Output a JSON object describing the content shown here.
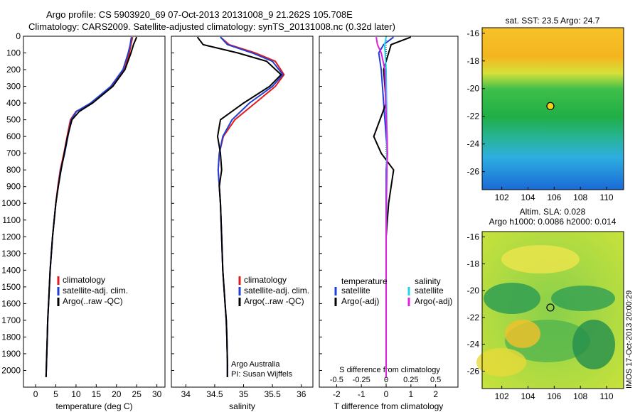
{
  "header": {
    "title_line1": "Argo profile: CS 5903920_69 07-Oct-2013 20131008_9 21.262S 105.708E",
    "title_line2": "Climatology: CARS2009. Satellite-adjusted climatology: synTS_20131008.nc (0.32d later)"
  },
  "colors": {
    "climatology": "#e41a1c",
    "satellite": "#1f3fd6",
    "argo": "#000000",
    "sat_salinity": "#22d4e8",
    "argo_salinity": "#e020e0"
  },
  "chart_data": [
    {
      "type": "line",
      "xlabel": "temperature (deg C)",
      "ylabel": "",
      "xlim": [
        -3,
        32
      ],
      "ylim": [
        2100,
        0
      ],
      "xticks": [
        0,
        5,
        10,
        15,
        20,
        25,
        30
      ],
      "yticks": [
        0,
        100,
        200,
        300,
        400,
        500,
        600,
        700,
        800,
        900,
        1000,
        1100,
        1200,
        1300,
        1400,
        1500,
        1600,
        1700,
        1800,
        1900,
        2000
      ],
      "legend": [
        "climatology",
        "satellite-adj. clim.",
        "Argo(..raw -QC)"
      ],
      "series": [
        {
          "name": "climatology",
          "color": "#e41a1c",
          "x": [
            24.0,
            23.6,
            23.2,
            22.0,
            19.0,
            14.0,
            10.0,
            8.6,
            7.8,
            7.0,
            6.1,
            5.5,
            5.0,
            4.6,
            4.2,
            3.9,
            3.6,
            3.4,
            3.2,
            3.0,
            2.9,
            2.7,
            2.6
          ],
          "y": [
            5,
            50,
            100,
            200,
            300,
            400,
            450,
            500,
            600,
            700,
            800,
            900,
            1000,
            1100,
            1200,
            1300,
            1400,
            1500,
            1600,
            1700,
            1800,
            1950,
            2040
          ]
        },
        {
          "name": "satellite-adj. clim.",
          "color": "#1f3fd6",
          "x": [
            23.7,
            23.4,
            22.9,
            21.6,
            18.6,
            13.6,
            10.1,
            8.8,
            8.0,
            7.2,
            6.2,
            5.6,
            5.0,
            4.6,
            4.2,
            3.9,
            3.6,
            3.4,
            3.2,
            3.0,
            2.9,
            2.7,
            2.6
          ],
          "y": [
            5,
            50,
            100,
            200,
            300,
            400,
            450,
            500,
            600,
            700,
            800,
            900,
            1000,
            1100,
            1200,
            1300,
            1400,
            1500,
            1600,
            1700,
            1800,
            1950,
            2040
          ]
        },
        {
          "name": "Argo(..raw -QC)",
          "color": "#000000",
          "x": [
            25.0,
            24.2,
            23.6,
            22.1,
            19.1,
            14.1,
            10.8,
            9.0,
            7.9,
            7.1,
            6.3,
            5.6,
            5.0,
            4.6,
            4.2,
            3.9,
            3.6,
            3.4,
            3.2,
            3.0,
            2.9,
            2.7,
            2.6
          ],
          "y": [
            5,
            50,
            100,
            200,
            300,
            400,
            450,
            500,
            600,
            700,
            800,
            900,
            1000,
            1100,
            1200,
            1300,
            1400,
            1500,
            1600,
            1700,
            1800,
            1950,
            2040
          ]
        }
      ],
      "annotations": []
    },
    {
      "type": "line",
      "xlabel": "salinity",
      "xlim": [
        33.75,
        36.2
      ],
      "ylim": [
        2100,
        0
      ],
      "xticks": [
        34,
        34.5,
        35,
        35.5,
        36
      ],
      "legend": [
        "climatology",
        "satellite-adj. clim.",
        "Argo(..raw -QC)"
      ],
      "series": [
        {
          "name": "climatology",
          "color": "#e41a1c",
          "x": [
            34.6,
            34.75,
            35.2,
            35.55,
            35.7,
            35.55,
            35.2,
            34.85,
            34.65,
            34.58,
            34.56,
            34.58,
            34.6,
            34.62,
            34.64,
            34.66,
            34.68,
            34.7,
            34.71,
            34.72,
            34.72
          ],
          "y": [
            5,
            50,
            100,
            150,
            230,
            300,
            400,
            500,
            600,
            700,
            800,
            900,
            1000,
            1200,
            1400,
            1500,
            1600,
            1700,
            1800,
            1950,
            2040
          ]
        },
        {
          "name": "satellite-adj. clim.",
          "color": "#1f3fd6",
          "x": [
            34.6,
            34.72,
            35.15,
            35.5,
            35.68,
            35.5,
            35.1,
            34.8,
            34.64,
            34.58,
            34.56,
            34.58,
            34.6,
            34.62,
            34.64,
            34.66,
            34.68,
            34.7,
            34.71,
            34.72,
            34.72
          ],
          "y": [
            5,
            50,
            100,
            150,
            230,
            300,
            400,
            500,
            600,
            700,
            800,
            900,
            1000,
            1200,
            1400,
            1500,
            1600,
            1700,
            1800,
            1950,
            2040
          ]
        },
        {
          "name": "Argo(..raw -QC)",
          "color": "#000000",
          "x": [
            34.2,
            34.3,
            34.9,
            35.4,
            35.65,
            35.45,
            35.0,
            34.6,
            34.55,
            34.6,
            34.62,
            34.58,
            34.6,
            34.62,
            34.64,
            34.66,
            34.68,
            34.7,
            34.71,
            34.72,
            34.72
          ],
          "y": [
            5,
            50,
            100,
            150,
            230,
            300,
            400,
            500,
            600,
            700,
            800,
            900,
            1000,
            1200,
            1400,
            1500,
            1600,
            1700,
            1800,
            1950,
            2040
          ]
        }
      ],
      "annotations": [
        "Argo Australia",
        "PI: Susan Wijffels"
      ]
    },
    {
      "type": "line",
      "xlabel": "T difference from climatology",
      "top_label": "S difference from climatology",
      "xlim": [
        -2.7,
        2.9
      ],
      "ylim": [
        2100,
        0
      ],
      "xticks": [
        -2,
        -1,
        0,
        1,
        2
      ],
      "top_ticks": [
        "-0.5",
        "-0.25",
        "0",
        "0.25",
        "0.5"
      ],
      "legend_titles": [
        "temperature",
        "salinity"
      ],
      "legend": [
        "satellite",
        "Argo(-adj)",
        "satellite",
        "Argo(-adj)"
      ],
      "series": [
        {
          "name": "temperature satellite",
          "color": "#1f3fd6",
          "x": [
            0.3,
            -0.1,
            -0.3,
            -0.2,
            -0.1,
            0.0,
            0.05,
            0.0,
            0.0,
            0.0,
            0.0,
            0.0,
            0.0
          ],
          "y": [
            5,
            50,
            100,
            200,
            400,
            600,
            700,
            800,
            1000,
            1200,
            1500,
            1800,
            2040
          ]
        },
        {
          "name": "temperature Argo(-adj)",
          "color": "#000000",
          "x": [
            1.0,
            0.2,
            0.1,
            -0.1,
            0.0,
            -0.5,
            -0.2,
            0.3,
            0.1,
            0.0,
            0.0,
            0.0,
            0.0
          ],
          "y": [
            5,
            50,
            100,
            200,
            400,
            600,
            700,
            800,
            1000,
            1200,
            1500,
            1800,
            2040
          ]
        },
        {
          "name": "salinity satellite",
          "color": "#22d4e8",
          "x": [
            0.0,
            -0.06,
            -0.04,
            0.0,
            0.02,
            0.03,
            0.03,
            0.02,
            0.01,
            0.0,
            0.0,
            0.0,
            0.0
          ],
          "y": [
            5,
            50,
            100,
            200,
            400,
            600,
            700,
            800,
            1000,
            1200,
            1500,
            1800,
            2040
          ]
        },
        {
          "name": "salinity Argo(-adj)",
          "color": "#e020e0",
          "x": [
            -0.4,
            -0.35,
            -0.2,
            -0.05,
            -0.02,
            0.04,
            0.05,
            0.03,
            0.01,
            0.0,
            0.0,
            0.0,
            0.0
          ],
          "y": [
            5,
            50,
            100,
            200,
            400,
            600,
            700,
            800,
            1000,
            1200,
            1500,
            1800,
            2040
          ]
        }
      ],
      "annotations": []
    },
    {
      "type": "heatmap",
      "title": "sat. SST: 23.5 Argo: 24.7",
      "xlim": [
        100.5,
        111.3
      ],
      "ylim": [
        -27.3,
        -15.6
      ],
      "xticks": [
        102,
        104,
        106,
        108,
        110
      ],
      "yticks": [
        -16,
        -18,
        -20,
        -22,
        -24,
        -26
      ],
      "marker": {
        "lon": 105.708,
        "lat": -21.262
      }
    },
    {
      "type": "heatmap",
      "title": "Altim. SLA: 0.028",
      "subtitle": "Argo h1000: 0.0086 h2000: 0.014",
      "xlim": [
        100.5,
        111.3
      ],
      "ylim": [
        -27.3,
        -15.6
      ],
      "xticks": [
        102,
        104,
        106,
        108,
        110
      ],
      "yticks": [
        -16,
        -18,
        -20,
        -22,
        -24,
        -26
      ],
      "marker": {
        "lon": 105.708,
        "lat": -21.262
      }
    }
  ],
  "footer": {
    "stamp": "IMOS 17-Oct-2013 20:00:29"
  }
}
